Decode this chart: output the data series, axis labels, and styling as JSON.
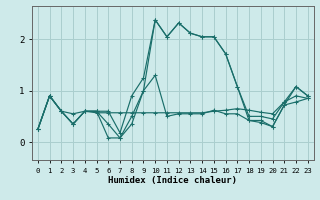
{
  "xlabel": "Humidex (Indice chaleur)",
  "bg_color": "#ceeaea",
  "grid_color": "#aacece",
  "line_color": "#1a6e6a",
  "xlim": [
    -0.5,
    23.5
  ],
  "ylim": [
    -0.35,
    2.65
  ],
  "yticks": [
    0,
    1,
    2
  ],
  "xticks": [
    0,
    1,
    2,
    3,
    4,
    5,
    6,
    7,
    8,
    9,
    10,
    11,
    12,
    13,
    14,
    15,
    16,
    17,
    18,
    19,
    20,
    21,
    22,
    23
  ],
  "series": [
    [
      0.25,
      0.9,
      0.6,
      0.55,
      0.6,
      0.57,
      0.57,
      0.57,
      0.57,
      0.57,
      0.57,
      0.57,
      0.57,
      0.57,
      0.57,
      0.6,
      0.62,
      0.65,
      0.62,
      0.58,
      0.55,
      0.78,
      0.9,
      0.85
    ],
    [
      0.25,
      0.9,
      0.6,
      0.35,
      0.6,
      0.6,
      0.6,
      0.18,
      0.9,
      1.25,
      2.38,
      2.05,
      2.32,
      2.12,
      2.05,
      2.05,
      1.72,
      1.08,
      0.5,
      0.5,
      0.45,
      0.78,
      1.08,
      0.9
    ],
    [
      0.25,
      0.9,
      0.6,
      0.35,
      0.6,
      0.6,
      0.35,
      0.08,
      0.5,
      1.0,
      2.38,
      2.05,
      2.32,
      2.12,
      2.05,
      2.05,
      1.72,
      1.08,
      0.42,
      0.42,
      0.3,
      0.72,
      1.08,
      0.9
    ],
    [
      0.25,
      0.9,
      0.6,
      0.35,
      0.6,
      0.6,
      0.08,
      0.08,
      0.35,
      1.0,
      1.3,
      0.5,
      0.55,
      0.55,
      0.55,
      0.62,
      0.55,
      0.55,
      0.42,
      0.38,
      0.3,
      0.72,
      0.78,
      0.85
    ]
  ]
}
